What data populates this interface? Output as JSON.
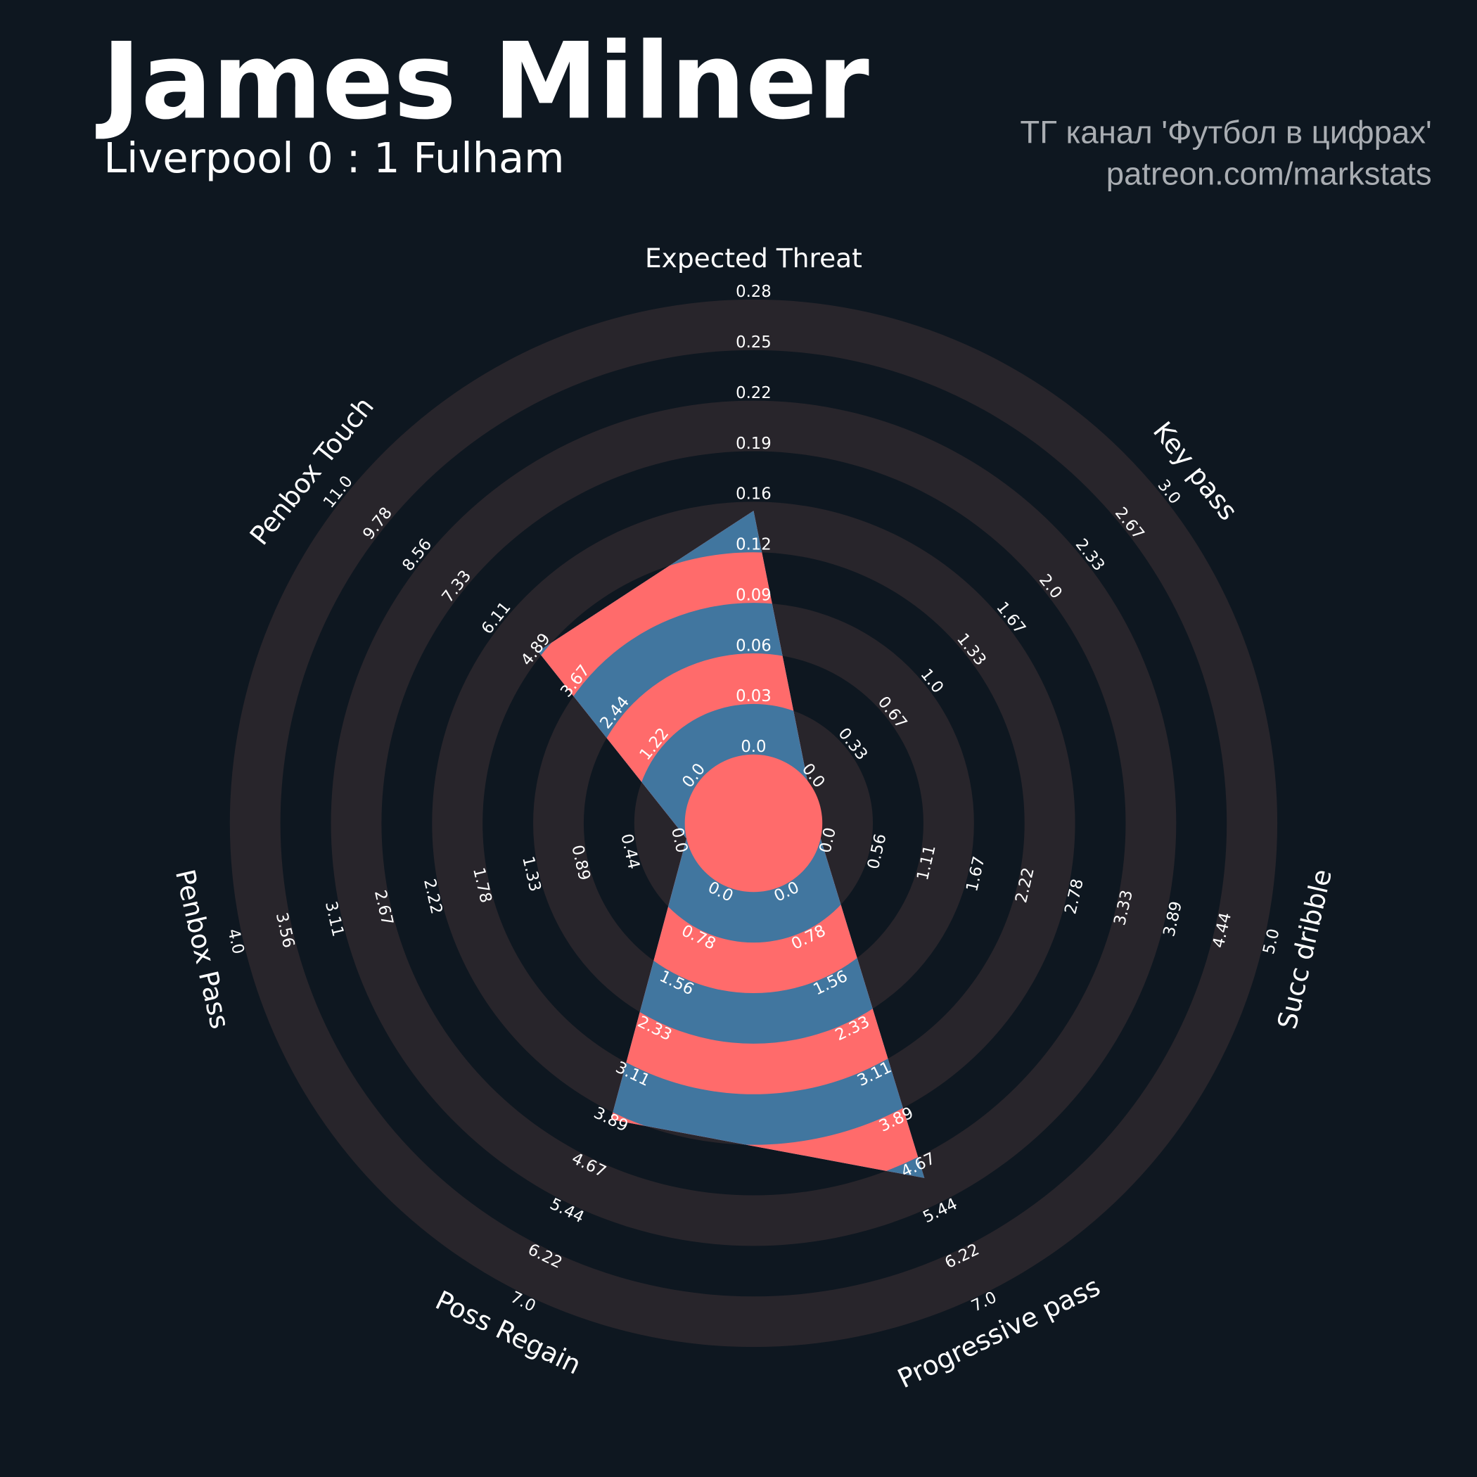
{
  "header": {
    "title": "James Milner",
    "subtitle": "Liverpool 0 : 1 Fulham",
    "credit_line1": "ТГ канал 'Футбол в цифрах'",
    "credit_line2": "patreon.com/markstats"
  },
  "colors": {
    "background": "#0e1720",
    "ring_light": "#28252b",
    "radar_primary": "#41769f",
    "radar_secondary": "#ff6b6b",
    "text": "#ffffff",
    "credit_text": "#a9adb2"
  },
  "chart_data": {
    "type": "radar",
    "params": [
      "Expected Threat",
      "Key pass",
      "Succ dribble",
      "Progressive pass",
      "Poss Regain",
      "Penbox Pass",
      "Penbox Touch"
    ],
    "min": [
      0,
      0,
      0,
      0,
      0,
      0,
      0
    ],
    "max": [
      0.28,
      3.0,
      5.0,
      7.0,
      7.0,
      4.0,
      11.0
    ],
    "values": [
      0.15,
      0,
      0,
      5,
      4,
      0,
      5
    ],
    "ticks": [
      [
        "0.0",
        "0.03",
        "0.06",
        "0.09",
        "0.12",
        "0.16",
        "0.19",
        "0.22",
        "0.25",
        "0.28"
      ],
      [
        "0.0",
        "0.33",
        "0.67",
        "1.0",
        "1.33",
        "1.67",
        "2.0",
        "2.33",
        "2.67",
        "3.0"
      ],
      [
        "0.0",
        "0.56",
        "1.11",
        "1.67",
        "2.22",
        "2.78",
        "3.33",
        "3.89",
        "4.44",
        "5.0"
      ],
      [
        "0.0",
        "0.78",
        "1.56",
        "2.33",
        "3.11",
        "3.89",
        "4.67",
        "5.44",
        "6.22",
        "7.0"
      ],
      [
        "0.0",
        "0.78",
        "1.56",
        "2.33",
        "3.11",
        "3.89",
        "4.67",
        "5.44",
        "6.22",
        "7.0"
      ],
      [
        "0.0",
        "0.44",
        "0.89",
        "1.33",
        "1.78",
        "2.22",
        "2.67",
        "3.11",
        "3.56",
        "4.0"
      ],
      [
        "0.0",
        "1.22",
        "2.44",
        "3.67",
        "4.89",
        "6.11",
        "7.33",
        "8.56",
        "9.78",
        "11.0"
      ]
    ]
  }
}
